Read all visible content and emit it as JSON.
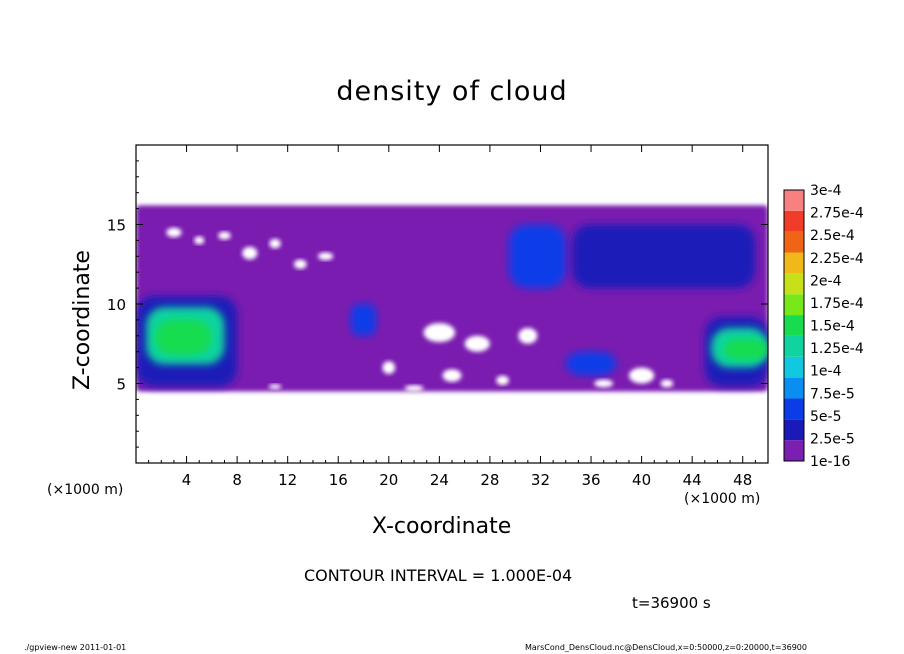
{
  "chart_data": {
    "type": "heatmap",
    "title": "density of cloud",
    "xlabel": "X-coordinate",
    "ylabel": "Z-coordinate",
    "x_unit_left": "(×1000 m)",
    "x_unit_right": "(×1000 m)",
    "xlim": [
      0,
      50
    ],
    "ylim": [
      0,
      20
    ],
    "x_ticks": [
      4,
      8,
      12,
      16,
      20,
      24,
      28,
      32,
      36,
      40,
      44,
      48
    ],
    "y_ticks": [
      5,
      10,
      15
    ],
    "colorbar": {
      "labels": [
        "1e-16",
        "2.5e-5",
        "5e-5",
        "7.5e-5",
        "1e-4",
        "1.25e-4",
        "1.5e-4",
        "1.75e-4",
        "2e-4",
        "2.25e-4",
        "2.5e-4",
        "2.75e-4",
        "3e-4"
      ],
      "colors": [
        "#7a1fb0",
        "#1a1ab8",
        "#0a3ce8",
        "#0a8ef0",
        "#12c8e0",
        "#10d4a0",
        "#18dc50",
        "#78e81a",
        "#c8e018",
        "#f0b818",
        "#f06418",
        "#f03c28",
        "#f88080"
      ]
    },
    "cloud_regions": [
      {
        "level": 0,
        "x": [
          0,
          50
        ],
        "z": [
          4.5,
          16.2
        ],
        "shape": "band"
      },
      {
        "level": 1,
        "x": [
          0,
          8
        ],
        "z": [
          4.8,
          10.5
        ]
      },
      {
        "level": 5,
        "x": [
          0.8,
          7.0
        ],
        "z": [
          6.2,
          9.8
        ]
      },
      {
        "level": 6,
        "x": [
          1.5,
          6.0
        ],
        "z": [
          6.8,
          9.0
        ]
      },
      {
        "level": 1,
        "x": [
          45.0,
          50
        ],
        "z": [
          4.8,
          9.2
        ]
      },
      {
        "level": 5,
        "x": [
          45.5,
          50
        ],
        "z": [
          6.0,
          8.5
        ]
      },
      {
        "level": 6,
        "x": [
          46.5,
          50
        ],
        "z": [
          6.5,
          7.8
        ]
      },
      {
        "level": 2,
        "x": [
          29.5,
          34.0
        ],
        "z": [
          11.0,
          15.0
        ]
      },
      {
        "level": 1,
        "x": [
          34.5,
          49.0
        ],
        "z": [
          11.0,
          15.0
        ]
      },
      {
        "level": 2,
        "x": [
          17.0,
          19.0
        ],
        "z": [
          8.0,
          10.0
        ]
      },
      {
        "level": 2,
        "x": [
          34.0,
          38.0
        ],
        "z": [
          5.5,
          7.0
        ]
      }
    ],
    "contour_interval": "CONTOUR INTERVAL = 1.000E-04",
    "time": "t=36900 s"
  },
  "footer": {
    "left": "./gpview-new   2011-01-01",
    "right": "MarsCond_DensCloud.nc@DensCloud,x=0:50000,z=0:20000,t=36900"
  }
}
